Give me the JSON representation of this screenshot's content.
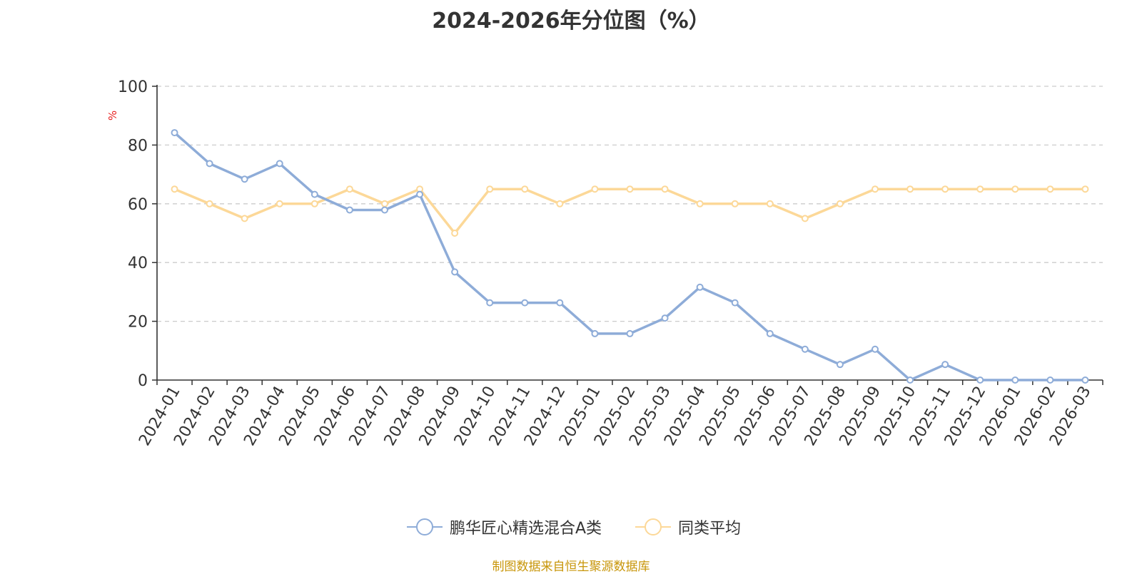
{
  "chart_data": {
    "type": "line",
    "title": "2024-2026年分位图（%）",
    "ylabel": "%",
    "xlabel": "",
    "ylim": [
      0,
      100
    ],
    "yticks": [
      0,
      20,
      40,
      60,
      80,
      100
    ],
    "grid": true,
    "legend_position": "bottom",
    "categories": [
      "2024-01",
      "2024-02",
      "2024-03",
      "2024-04",
      "2024-05",
      "2024-06",
      "2024-07",
      "2024-08",
      "2024-09",
      "2024-10",
      "2024-11",
      "2024-12",
      "2025-01",
      "2025-02",
      "2025-03",
      "2025-04",
      "2025-05",
      "2025-06",
      "2025-07",
      "2025-08",
      "2025-09",
      "2025-10",
      "2025-11",
      "2025-12",
      "2026-01",
      "2026-02",
      "2026-03"
    ],
    "series": [
      {
        "name": "鹏华匠心精选混合A类",
        "color": "#8eacd8",
        "values": [
          84.2,
          73.7,
          68.4,
          73.7,
          63.2,
          57.9,
          57.9,
          63.2,
          36.8,
          26.3,
          26.3,
          26.3,
          15.8,
          15.8,
          21.1,
          31.6,
          26.3,
          15.8,
          10.5,
          5.3,
          10.5,
          0,
          5.3,
          0,
          0,
          0,
          0
        ]
      },
      {
        "name": "同类平均",
        "color": "#fcd898",
        "values": [
          65,
          60,
          55,
          60,
          60,
          65,
          60,
          65,
          50,
          65,
          65,
          60,
          65,
          65,
          65,
          60,
          60,
          60,
          55,
          60,
          65,
          65,
          65,
          65,
          65,
          65,
          65
        ]
      }
    ]
  },
  "source_text": "制图数据来自恒生聚源数据库",
  "colors": {
    "axis": "#333333",
    "grid": "#cccccc",
    "ylabel": "#e8201f",
    "source": "#c8960a"
  }
}
